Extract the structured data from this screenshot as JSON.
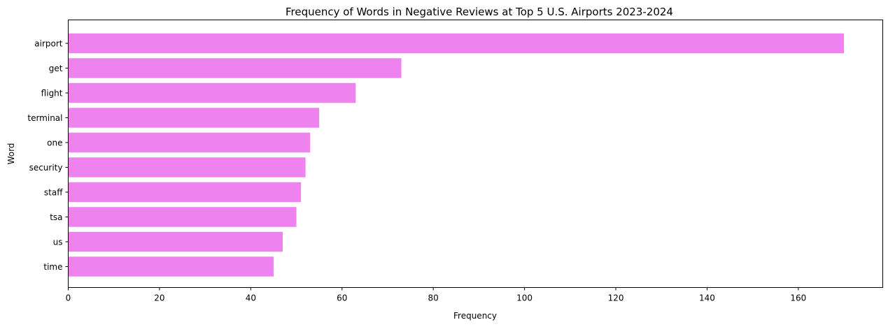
{
  "chart_data": {
    "type": "bar",
    "orientation": "horizontal",
    "title": "Frequency of Words in Negative Reviews at Top 5 U.S. Airports 2023-2024",
    "xlabel": "Frequency",
    "ylabel": "Word",
    "categories": [
      "airport",
      "get",
      "flight",
      "terminal",
      "one",
      "security",
      "staff",
      "tsa",
      "us",
      "time"
    ],
    "values": [
      170,
      73,
      63,
      55,
      53,
      52,
      51,
      50,
      47,
      45
    ],
    "xlim": [
      0,
      178.5
    ],
    "xticks": [
      0,
      20,
      40,
      60,
      80,
      100,
      120,
      140,
      160
    ],
    "grid": false,
    "legend": "none",
    "bar_color": "#ee82ee"
  }
}
